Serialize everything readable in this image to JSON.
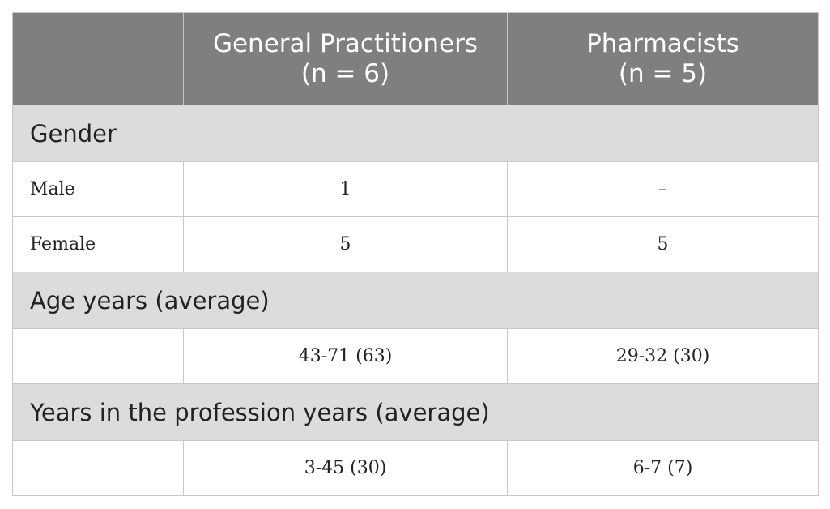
{
  "table": {
    "header": {
      "col1": "",
      "col2_line1": "General Practitioners",
      "col2_line2": "(n = 6)",
      "col3_line1": "Pharmacists",
      "col3_line2": "(n = 5)"
    },
    "sections": [
      {
        "title": "Gender",
        "rows": [
          {
            "label": "Male",
            "gp": "1",
            "pharm": "–"
          },
          {
            "label": "Female",
            "gp": "5",
            "pharm": "5"
          }
        ]
      },
      {
        "title": "Age years (average)",
        "rows": [
          {
            "label": "",
            "gp": "43-71 (63)",
            "pharm": "29-32 (30)"
          }
        ]
      },
      {
        "title": "Years in the profession years (average)",
        "rows": [
          {
            "label": "",
            "gp": "3-45 (30)",
            "pharm": "6-7 (7)"
          }
        ]
      }
    ]
  }
}
